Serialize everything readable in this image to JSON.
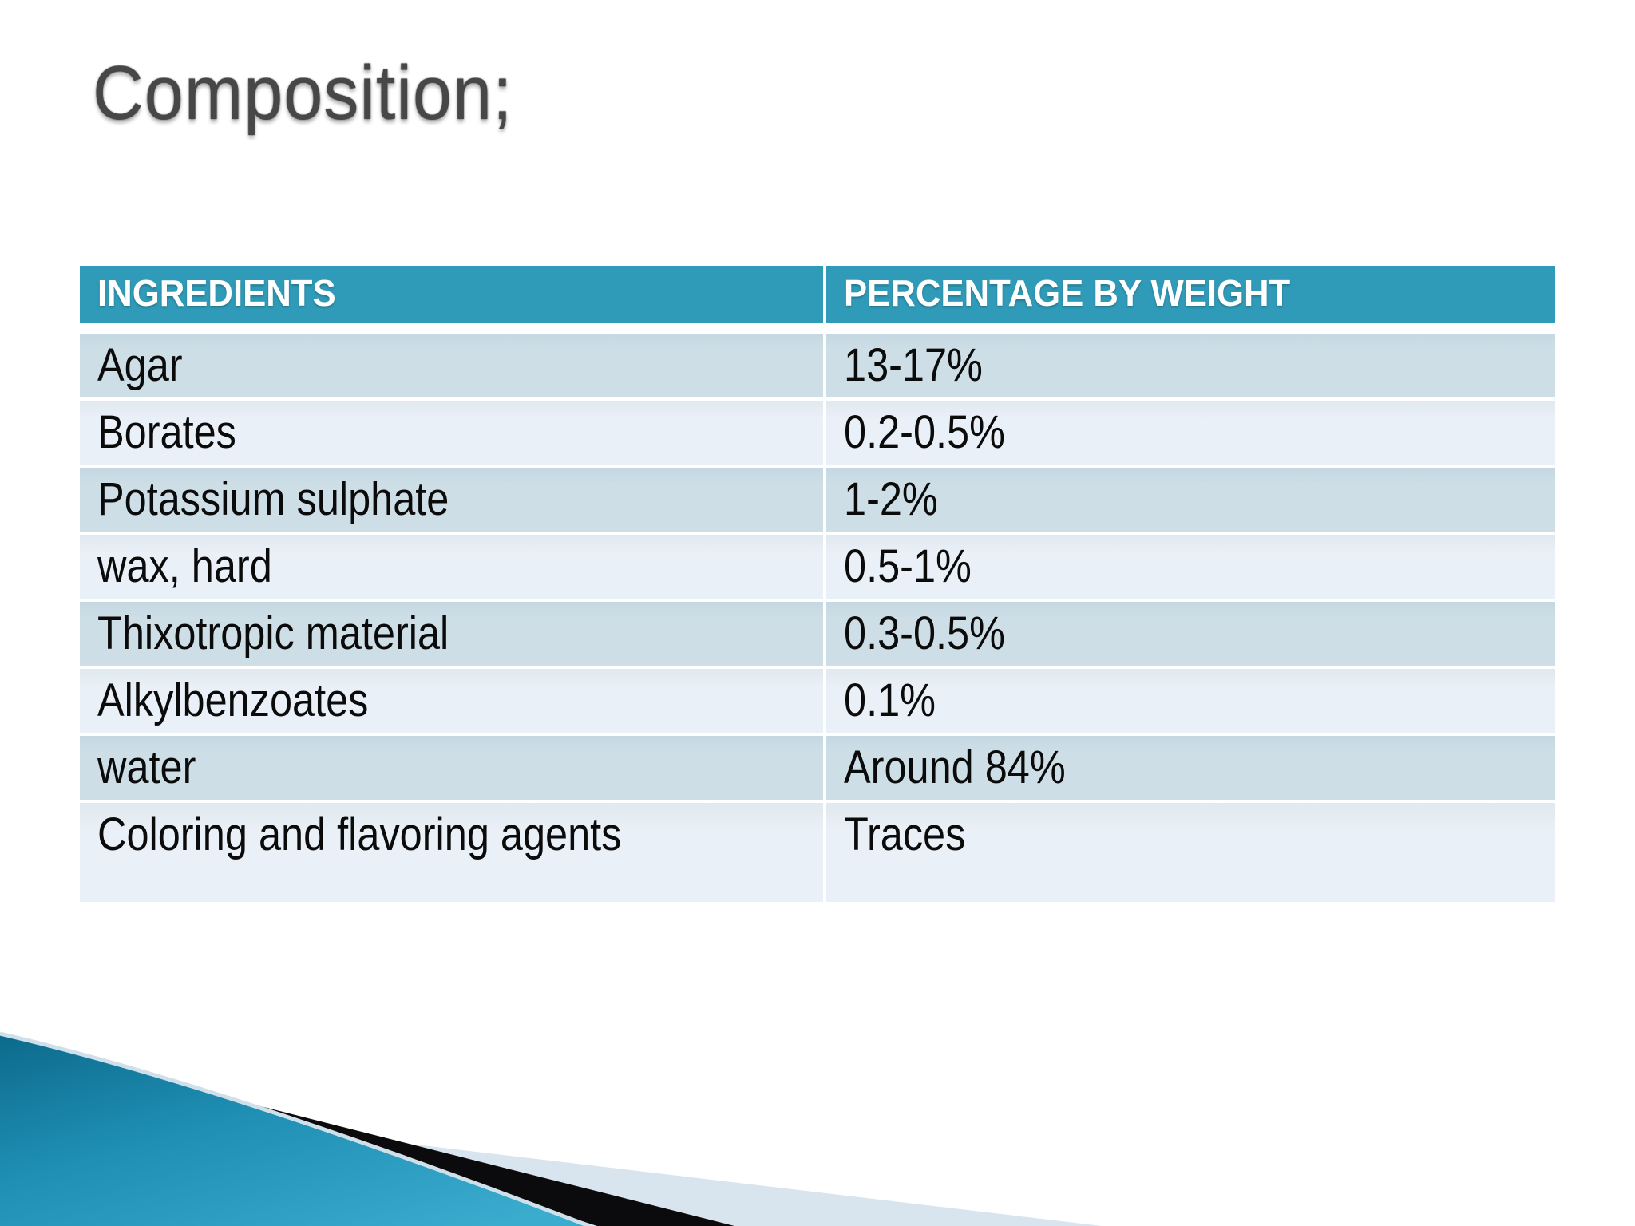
{
  "slide": {
    "title": "Composition;"
  },
  "table": {
    "columns": [
      "INGREDIENTS",
      "PERCENTAGE BY WEIGHT"
    ],
    "rows": [
      [
        "Agar",
        "13-17%"
      ],
      [
        "Borates",
        "0.2-0.5%"
      ],
      [
        "Potassium sulphate",
        "1-2%"
      ],
      [
        "wax, hard",
        "0.5-1%"
      ],
      [
        "Thixotropic material",
        "0.3-0.5%"
      ],
      [
        "Alkylbenzoates",
        "0.1%"
      ],
      [
        "water",
        "Around 84%"
      ],
      [
        "Coloring and flavoring agents",
        "Traces"
      ]
    ]
  },
  "colors": {
    "header_bg": "#2F9BB8",
    "row_dark": "#CCDDE5",
    "row_light": "#E9EFF6",
    "title_gray": "#474747",
    "swoosh_teal_dark": "#0C6A8C",
    "swoosh_teal_mid": "#1F8FB4",
    "swoosh_teal_light": "#3AACCE",
    "swoosh_black": "#0B0B0D",
    "swoosh_pale_blue": "#D8E4EE"
  }
}
